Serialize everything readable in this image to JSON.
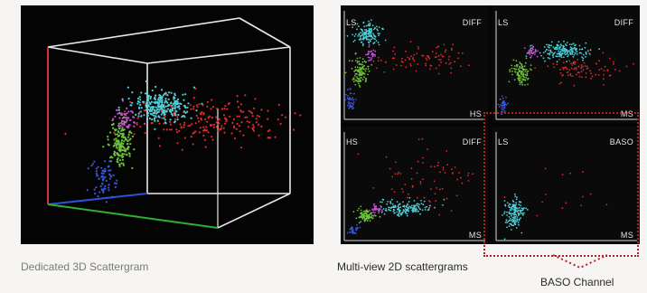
{
  "chart_data": [
    {
      "type": "scatter",
      "title": "",
      "caption": "Dedicated 3D Scattergram",
      "series": [
        {
          "color": "#e02a2a",
          "n": 220,
          "cx": 0.64,
          "cy": 0.48,
          "sx": 0.14,
          "sy": 0.05
        },
        {
          "color": "#4fd0d8",
          "n": 260,
          "cx": 0.48,
          "cy": 0.42,
          "sx": 0.05,
          "sy": 0.03
        },
        {
          "color": "#c54fd2",
          "n": 60,
          "cx": 0.36,
          "cy": 0.48,
          "sx": 0.02,
          "sy": 0.02
        },
        {
          "color": "#6cc23a",
          "n": 160,
          "cx": 0.34,
          "cy": 0.58,
          "sx": 0.02,
          "sy": 0.05
        },
        {
          "color": "#3b56d8",
          "n": 70,
          "cx": 0.28,
          "cy": 0.73,
          "sx": 0.02,
          "sy": 0.04
        }
      ]
    },
    {
      "type": "scatter",
      "caption": "Multi-view 2D scattergrams",
      "panels": [
        {
          "y_label": "LS",
          "x_label": "HS",
          "channel": "DIFF",
          "series": [
            {
              "color": "#e02a2a",
              "n": 90,
              "cx": 0.55,
              "cy": 0.45,
              "sx": 0.16,
              "sy": 0.07
            },
            {
              "color": "#4fd0d8",
              "n": 140,
              "cx": 0.16,
              "cy": 0.22,
              "sx": 0.05,
              "sy": 0.05
            },
            {
              "color": "#c54fd2",
              "n": 30,
              "cx": 0.18,
              "cy": 0.42,
              "sx": 0.02,
              "sy": 0.03
            },
            {
              "color": "#6cc23a",
              "n": 110,
              "cx": 0.11,
              "cy": 0.58,
              "sx": 0.03,
              "sy": 0.06
            },
            {
              "color": "#3b56d8",
              "n": 45,
              "cx": 0.03,
              "cy": 0.86,
              "sx": 0.015,
              "sy": 0.05
            }
          ]
        },
        {
          "y_label": "LS",
          "x_label": "MS",
          "channel": "DIFF",
          "series": [
            {
              "color": "#e02a2a",
              "n": 90,
              "cx": 0.62,
              "cy": 0.55,
              "sx": 0.14,
              "sy": 0.06
            },
            {
              "color": "#4fd0d8",
              "n": 170,
              "cx": 0.48,
              "cy": 0.38,
              "sx": 0.09,
              "sy": 0.04
            },
            {
              "color": "#c54fd2",
              "n": 35,
              "cx": 0.25,
              "cy": 0.4,
              "sx": 0.02,
              "sy": 0.03
            },
            {
              "color": "#6cc23a",
              "n": 110,
              "cx": 0.16,
              "cy": 0.58,
              "sx": 0.03,
              "sy": 0.06
            },
            {
              "color": "#3b56d8",
              "n": 40,
              "cx": 0.04,
              "cy": 0.9,
              "sx": 0.015,
              "sy": 0.04
            }
          ]
        },
        {
          "y_label": "HS",
          "x_label": "MS",
          "channel": "DIFF",
          "series": [
            {
              "color": "#e02a2a",
              "n": 70,
              "cx": 0.62,
              "cy": 0.45,
              "sx": 0.16,
              "sy": 0.16
            },
            {
              "color": "#4fd0d8",
              "n": 160,
              "cx": 0.44,
              "cy": 0.73,
              "sx": 0.1,
              "sy": 0.04
            },
            {
              "color": "#c54fd2",
              "n": 35,
              "cx": 0.22,
              "cy": 0.74,
              "sx": 0.02,
              "sy": 0.02
            },
            {
              "color": "#6cc23a",
              "n": 90,
              "cx": 0.14,
              "cy": 0.8,
              "sx": 0.03,
              "sy": 0.03
            },
            {
              "color": "#3b56d8",
              "n": 25,
              "cx": 0.06,
              "cy": 0.93,
              "sx": 0.02,
              "sy": 0.02
            }
          ]
        },
        {
          "y_label": "LS",
          "x_label": "MS",
          "channel": "BASO",
          "series": [
            {
              "color": "#4fd0d8",
              "n": 150,
              "cx": 0.12,
              "cy": 0.77,
              "sx": 0.035,
              "sy": 0.07
            },
            {
              "color": "#e02a2a",
              "n": 14,
              "cx": 0.45,
              "cy": 0.6,
              "sx": 0.2,
              "sy": 0.2
            }
          ]
        }
      ]
    }
  ],
  "annotation": {
    "label": "BASO Channel",
    "color": "#b51f24"
  }
}
